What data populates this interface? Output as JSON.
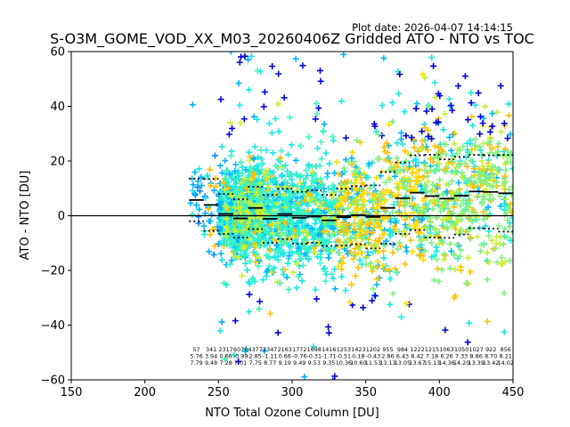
{
  "chart_data": {
    "type": "scatter",
    "title": "S-O3M_GOME_VOD_XX_M03_20260406Z Gridded ATO - NTO vs TOC",
    "subtitle": "Plot date: 2026-04-07 14:14:15",
    "xlabel": "NTO Total Ozone Column [DU]",
    "ylabel": "ATO - NTO [DU]",
    "xlim": [
      150,
      450
    ],
    "ylim": [
      -60,
      60
    ],
    "xticks": [
      150,
      200,
      250,
      300,
      350,
      400,
      450
    ],
    "yticks": [
      -60,
      -40,
      -20,
      0,
      20,
      40,
      60
    ],
    "xtick_labels": [
      "150",
      "200",
      "250",
      "300",
      "350",
      "400",
      "450"
    ],
    "ytick_labels": [
      "−60",
      "−40",
      "−20",
      "0",
      "20",
      "40",
      "60"
    ],
    "zero_line": 0,
    "grid": false,
    "marker": "+",
    "point_colors": [
      "#0000dd",
      "#0088ff",
      "#00b4ff",
      "#19e8e0",
      "#3af5c0",
      "#80f080",
      "#c8f030",
      "#ffe000",
      "#ffc000"
    ],
    "bins": {
      "edges_start": 230,
      "width": 10,
      "centers": [
        235,
        245,
        255,
        265,
        275,
        285,
        295,
        305,
        315,
        325,
        335,
        345,
        355,
        365,
        375,
        385,
        395,
        405,
        415,
        425,
        435,
        445
      ],
      "counts": [
        57,
        341,
        2317,
        6076,
        4377,
        2347,
        2163,
        1772,
        1698,
        1416,
        1253,
        1423,
        1202,
        955,
        984,
        1222,
        1215,
        1063,
        1050,
        1027,
        922,
        856
      ],
      "mean": [
        5.76,
        3.94,
        0.66,
        -0.99,
        2.85,
        -1.11,
        0.66,
        -0.76,
        -0.31,
        -1.71,
        -0.51,
        0.18,
        -0.43,
        2.86,
        6.43,
        8.42,
        7.18,
        6.26,
        7.33,
        8.86,
        8.7,
        8.21
      ],
      "std": [
        7.79,
        9.48,
        7.28,
        7.01,
        7.75,
        8.77,
        9.19,
        9.49,
        9.53,
        9.35,
        10.36,
        10.6,
        11.53,
        13.13,
        13.05,
        13.67,
        15.13,
        14.36,
        14.2,
        13.39,
        13.42,
        14.02
      ]
    },
    "series": [
      {
        "name": "bin mean",
        "style": "solid black segments"
      },
      {
        "name": "bin mean ± std",
        "style": "dotted black segments"
      }
    ]
  }
}
